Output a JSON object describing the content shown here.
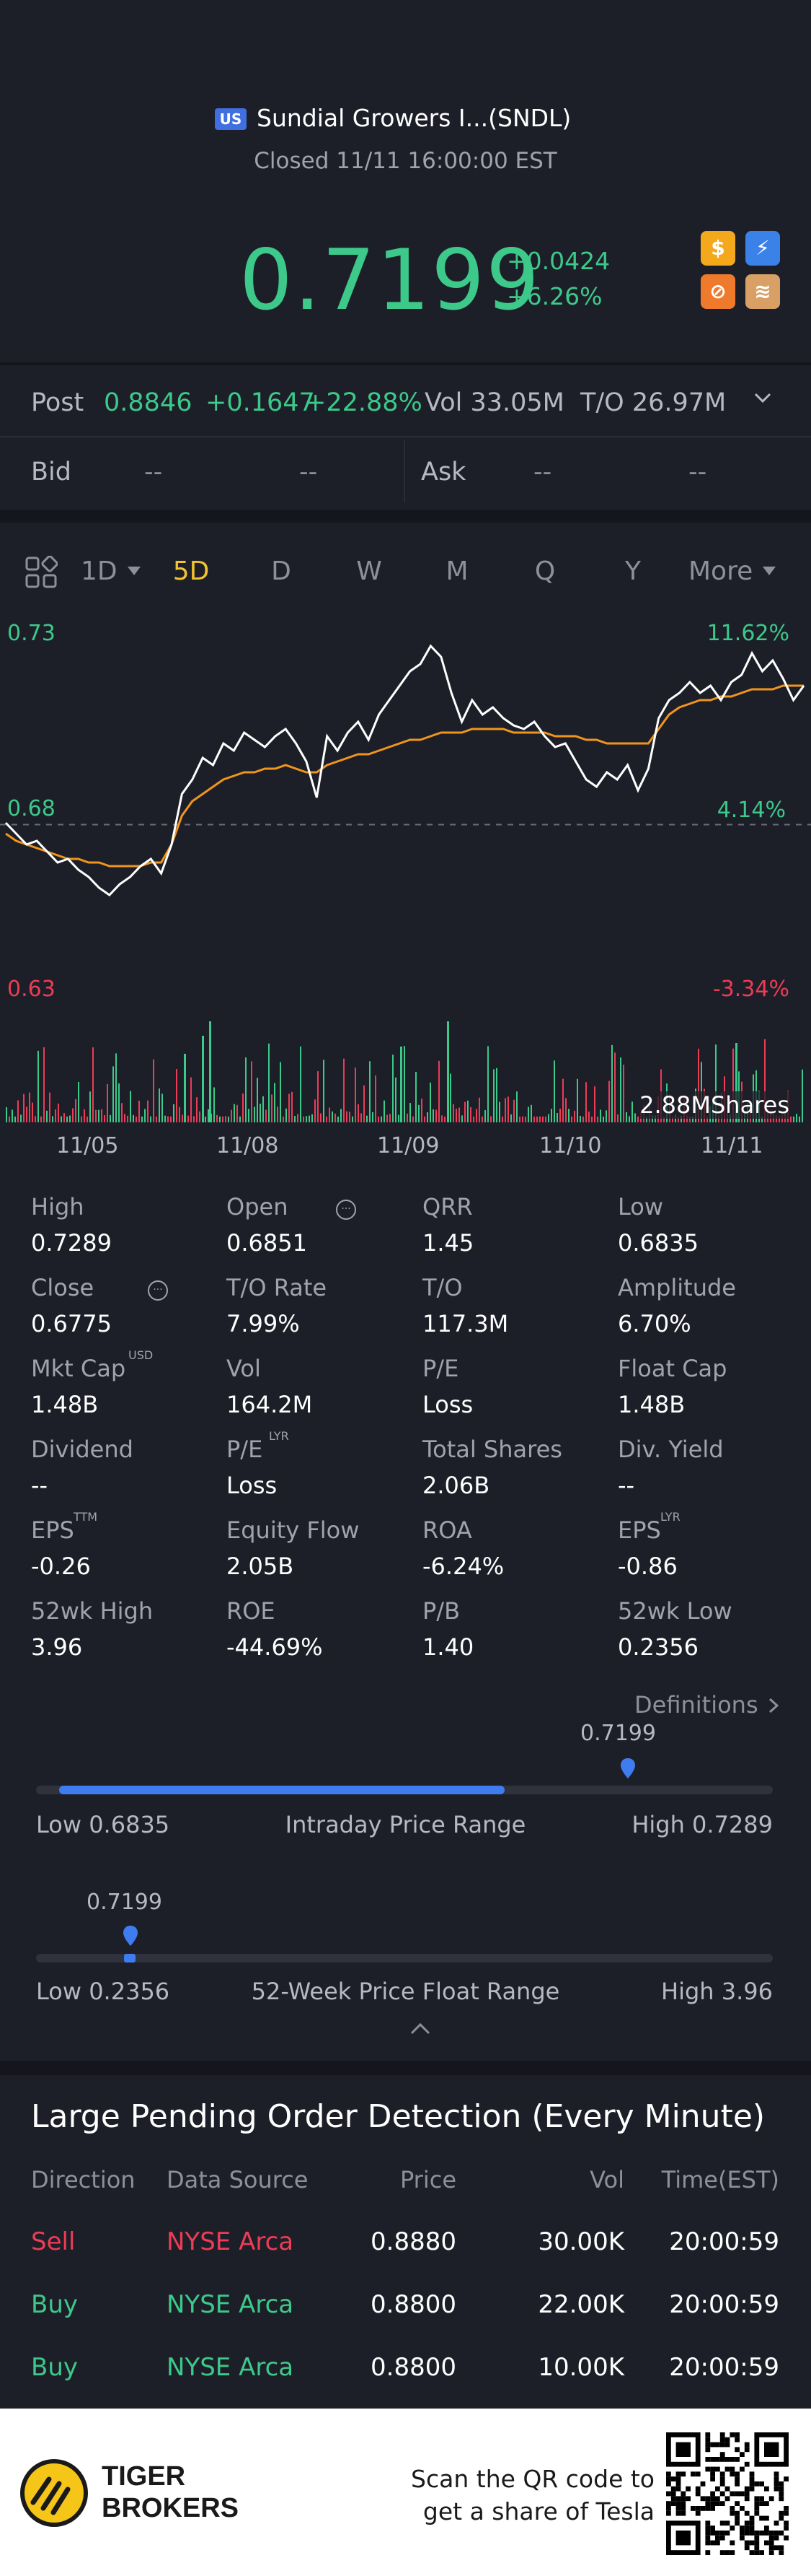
{
  "header": {
    "market_badge": "US",
    "name": "Sundial Growers I...(SNDL)",
    "status": "Closed 11/11 16:00:00 EST",
    "price": "0.7199",
    "change": "+0.0424",
    "change_pct": "+6.26%",
    "icons": [
      "dollar-icon",
      "lightning-icon",
      "no-margin-icon",
      "layers-icon"
    ]
  },
  "post": {
    "label": "Post",
    "price": "0.8846",
    "change": "+0.1647",
    "pct": "+22.88%",
    "vol": "Vol 33.05M",
    "turnover": "T/O 26.97M"
  },
  "bidask": {
    "bid_label": "Bid",
    "bid_1": "--",
    "bid_2": "--",
    "ask_label": "Ask",
    "ask_1": "--",
    "ask_2": "--"
  },
  "tabs": {
    "interval": "1D",
    "items": [
      "5D",
      "D",
      "W",
      "M",
      "Q",
      "Y"
    ],
    "more": "More"
  },
  "chart_data": {
    "type": "line",
    "y_left_labels": [
      "0.73",
      "0.68",
      "0.63"
    ],
    "y_right_labels": [
      "11.62%",
      "4.14%",
      "-3.34%"
    ],
    "x_labels": [
      "11/05",
      "11/08",
      "11/09",
      "11/10",
      "11/11"
    ],
    "volume_label": "2.88MShares",
    "ylim": [
      0.63,
      0.73
    ],
    "prev_close": 0.6775,
    "series": [
      {
        "values": [
          0.678,
          0.675,
          0.672,
          0.673,
          0.67,
          0.667,
          0.668,
          0.665,
          0.663,
          0.66,
          0.658,
          0.661,
          0.663,
          0.666,
          0.668,
          0.664,
          0.672,
          0.686,
          0.69,
          0.696,
          0.694,
          0.7,
          0.698,
          0.703,
          0.701,
          0.699,
          0.702,
          0.704,
          0.7,
          0.695,
          0.685,
          0.702,
          0.698,
          0.703,
          0.706,
          0.701,
          0.708,
          0.712,
          0.716,
          0.72,
          0.722,
          0.727,
          0.724,
          0.714,
          0.706,
          0.712,
          0.708,
          0.71,
          0.707,
          0.705,
          0.704,
          0.706,
          0.702,
          0.699,
          0.7,
          0.695,
          0.69,
          0.688,
          0.692,
          0.69,
          0.694,
          0.687,
          0.693,
          0.707,
          0.712,
          0.714,
          0.717,
          0.714,
          0.716,
          0.712,
          0.717,
          0.719,
          0.725,
          0.72,
          0.723,
          0.718,
          0.712,
          0.716
        ]
      },
      {
        "values": [
          0.675,
          0.673,
          0.672,
          0.671,
          0.67,
          0.669,
          0.668,
          0.668,
          0.667,
          0.667,
          0.666,
          0.666,
          0.666,
          0.666,
          0.667,
          0.667,
          0.672,
          0.68,
          0.684,
          0.686,
          0.688,
          0.69,
          0.691,
          0.692,
          0.692,
          0.693,
          0.693,
          0.694,
          0.693,
          0.692,
          0.692,
          0.694,
          0.695,
          0.696,
          0.697,
          0.697,
          0.698,
          0.699,
          0.7,
          0.701,
          0.701,
          0.702,
          0.703,
          0.703,
          0.703,
          0.704,
          0.704,
          0.704,
          0.704,
          0.703,
          0.703,
          0.703,
          0.703,
          0.702,
          0.702,
          0.702,
          0.701,
          0.701,
          0.7,
          0.7,
          0.7,
          0.7,
          0.7,
          0.704,
          0.708,
          0.71,
          0.711,
          0.712,
          0.712,
          0.713,
          0.713,
          0.714,
          0.715,
          0.715,
          0.715,
          0.716,
          0.716,
          0.716
        ]
      }
    ],
    "colors": {
      "price": "#ffffff",
      "avg": "#f0941e",
      "up": "#3cc98a",
      "down": "#ec3c56"
    }
  },
  "stats": [
    {
      "label": "High",
      "value": "0.7289"
    },
    {
      "label": "Open",
      "value": "0.6851"
    },
    {
      "label": "QRR",
      "value": "1.45"
    },
    {
      "label": "Low",
      "value": "0.6835"
    },
    {
      "label": "Close",
      "value": "0.6775"
    },
    {
      "label": "T/O Rate",
      "value": "7.99%"
    },
    {
      "label": "T/O",
      "value": "117.3M"
    },
    {
      "label": "Amplitude",
      "value": "6.70%"
    },
    {
      "label": "Mkt Cap",
      "value": "1.48B",
      "sup": "USD"
    },
    {
      "label": "Vol",
      "value": "164.2M"
    },
    {
      "label": "P/E",
      "value": "Loss"
    },
    {
      "label": "Float Cap",
      "value": "1.48B"
    },
    {
      "label": "Dividend",
      "value": "--"
    },
    {
      "label": "P/E",
      "value": "Loss",
      "sup": "LYR"
    },
    {
      "label": "Total Shares",
      "value": "2.06B"
    },
    {
      "label": "Div. Yield",
      "value": "--"
    },
    {
      "label": "EPS",
      "value": "-0.26",
      "sup": "TTM"
    },
    {
      "label": "Equity Flow",
      "value": "2.05B"
    },
    {
      "label": "ROA",
      "value": "-6.24%"
    },
    {
      "label": "EPS",
      "value": "-0.86",
      "sup": "LYR"
    },
    {
      "label": "52wk High",
      "value": "3.96"
    },
    {
      "label": "ROE",
      "value": "-44.69%"
    },
    {
      "label": "P/B",
      "value": "1.40"
    },
    {
      "label": "52wk Low",
      "value": "0.2356"
    }
  ],
  "definitions": "Definitions",
  "intraday": {
    "marker": "0.7199",
    "low": "Low 0.6835",
    "title": "Intraday Price Range",
    "high": "High 0.7289",
    "fraction": 0.78
  },
  "week52": {
    "marker": "0.7199",
    "low": "Low 0.2356",
    "title": "52-Week Price Float Range",
    "high": "High 3.96",
    "fraction": 0.131
  },
  "orders": {
    "title": "Large Pending Order Detection (Every Minute)",
    "headers": [
      "Direction",
      "Data Source",
      "Price",
      "Vol",
      "Time(EST)"
    ],
    "rows": [
      {
        "direction": "Sell",
        "source": "NYSE Arca",
        "price": "0.8880",
        "vol": "30.00K",
        "time": "20:00:59"
      },
      {
        "direction": "Buy",
        "source": "NYSE Arca",
        "price": "0.8800",
        "vol": "22.00K",
        "time": "20:00:59"
      },
      {
        "direction": "Buy",
        "source": "NYSE Arca",
        "price": "0.8800",
        "vol": "10.00K",
        "time": "20:00:59"
      }
    ]
  },
  "footer": {
    "brand_line1": "TIGER",
    "brand_line2": "BROKERS",
    "cta_line1": "Scan the QR code to",
    "cta_line2": "get a share of Tesla"
  }
}
